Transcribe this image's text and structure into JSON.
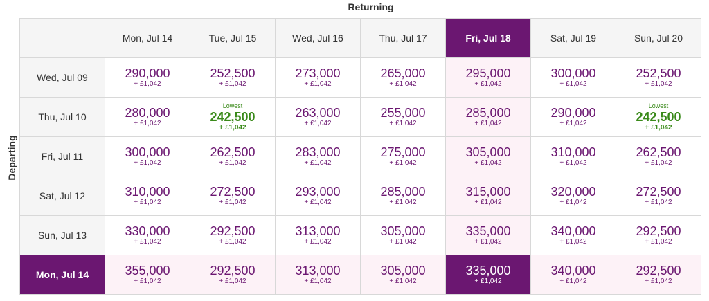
{
  "labels": {
    "returning": "Returning",
    "departing": "Departing",
    "lowest": "Lowest"
  },
  "colors": {
    "accent": "#6b1771",
    "lowest": "#3a8a1a",
    "highlight": "#fdf2f7",
    "header_bg": "#f5f5f5"
  },
  "return_dates": [
    "Mon, Jul 14",
    "Tue, Jul 15",
    "Wed, Jul 16",
    "Thu, Jul 17",
    "Fri, Jul 18",
    "Sat, Jul 19",
    "Sun, Jul 20"
  ],
  "selected_return_index": 4,
  "selected_depart_index": 5,
  "rows": [
    {
      "depart": "Wed, Jul 09",
      "cells": [
        {
          "points": "290,000",
          "fee": "+ £1,042"
        },
        {
          "points": "252,500",
          "fee": "+ £1,042"
        },
        {
          "points": "273,000",
          "fee": "+ £1,042"
        },
        {
          "points": "265,000",
          "fee": "+ £1,042"
        },
        {
          "points": "295,000",
          "fee": "+ £1,042"
        },
        {
          "points": "300,000",
          "fee": "+ £1,042"
        },
        {
          "points": "252,500",
          "fee": "+ £1,042"
        }
      ]
    },
    {
      "depart": "Thu, Jul 10",
      "cells": [
        {
          "points": "280,000",
          "fee": "+ £1,042"
        },
        {
          "points": "242,500",
          "fee": "+ £1,042",
          "lowest": true
        },
        {
          "points": "263,000",
          "fee": "+ £1,042"
        },
        {
          "points": "255,000",
          "fee": "+ £1,042"
        },
        {
          "points": "285,000",
          "fee": "+ £1,042"
        },
        {
          "points": "290,000",
          "fee": "+ £1,042"
        },
        {
          "points": "242,500",
          "fee": "+ £1,042",
          "lowest": true
        }
      ]
    },
    {
      "depart": "Fri, Jul 11",
      "cells": [
        {
          "points": "300,000",
          "fee": "+ £1,042"
        },
        {
          "points": "262,500",
          "fee": "+ £1,042"
        },
        {
          "points": "283,000",
          "fee": "+ £1,042"
        },
        {
          "points": "275,000",
          "fee": "+ £1,042"
        },
        {
          "points": "305,000",
          "fee": "+ £1,042"
        },
        {
          "points": "310,000",
          "fee": "+ £1,042"
        },
        {
          "points": "262,500",
          "fee": "+ £1,042"
        }
      ]
    },
    {
      "depart": "Sat, Jul 12",
      "cells": [
        {
          "points": "310,000",
          "fee": "+ £1,042"
        },
        {
          "points": "272,500",
          "fee": "+ £1,042"
        },
        {
          "points": "293,000",
          "fee": "+ £1,042"
        },
        {
          "points": "285,000",
          "fee": "+ £1,042"
        },
        {
          "points": "315,000",
          "fee": "+ £1,042"
        },
        {
          "points": "320,000",
          "fee": "+ £1,042"
        },
        {
          "points": "272,500",
          "fee": "+ £1,042"
        }
      ]
    },
    {
      "depart": "Sun, Jul 13",
      "cells": [
        {
          "points": "330,000",
          "fee": "+ £1,042"
        },
        {
          "points": "292,500",
          "fee": "+ £1,042"
        },
        {
          "points": "313,000",
          "fee": "+ £1,042"
        },
        {
          "points": "305,000",
          "fee": "+ £1,042"
        },
        {
          "points": "335,000",
          "fee": "+ £1,042"
        },
        {
          "points": "340,000",
          "fee": "+ £1,042"
        },
        {
          "points": "292,500",
          "fee": "+ £1,042"
        }
      ]
    },
    {
      "depart": "Mon, Jul 14",
      "cells": [
        {
          "points": "355,000",
          "fee": "+ £1,042"
        },
        {
          "points": "292,500",
          "fee": "+ £1,042"
        },
        {
          "points": "313,000",
          "fee": "+ £1,042"
        },
        {
          "points": "305,000",
          "fee": "+ £1,042"
        },
        {
          "points": "335,000",
          "fee": "+ £1,042"
        },
        {
          "points": "340,000",
          "fee": "+ £1,042"
        },
        {
          "points": "292,500",
          "fee": "+ £1,042"
        }
      ]
    }
  ]
}
